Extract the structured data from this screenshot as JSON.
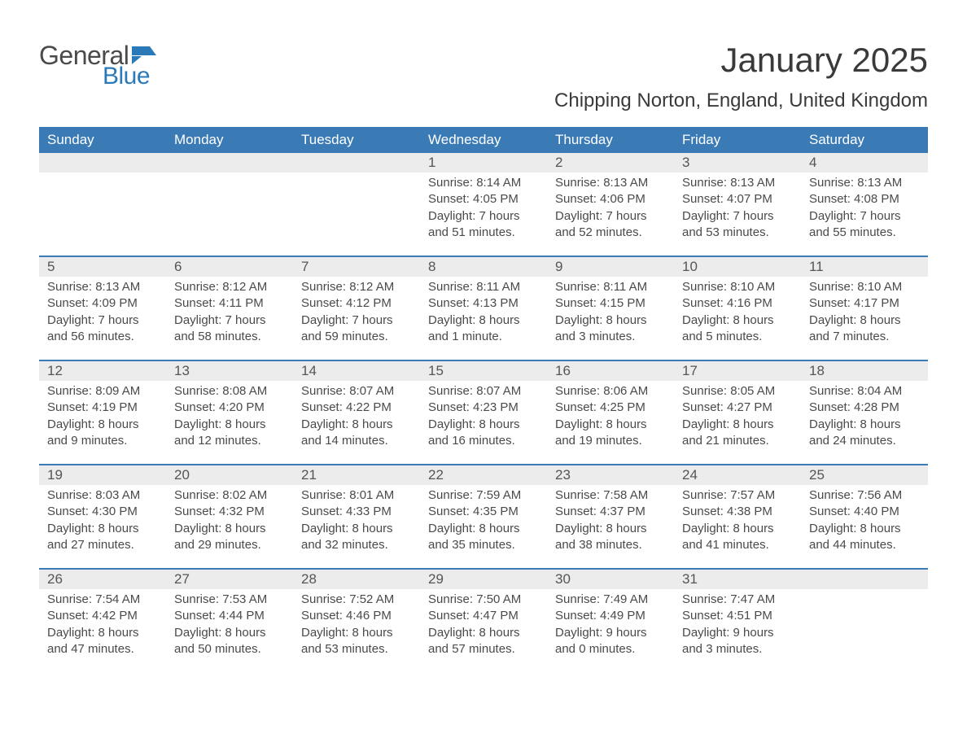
{
  "logo": {
    "text1": "General",
    "text2": "Blue",
    "flag_color": "#2a7ab9"
  },
  "title": "January 2025",
  "location": "Chipping Norton, England, United Kingdom",
  "colors": {
    "header_bg": "#3a7ab5",
    "header_text": "#ffffff",
    "daynum_bg": "#ececec",
    "week_border": "#3a7ab5",
    "body_text": "#4a4a4a",
    "title_text": "#3a3a3a",
    "logo_blue": "#2a7ab9"
  },
  "weekdays": [
    "Sunday",
    "Monday",
    "Tuesday",
    "Wednesday",
    "Thursday",
    "Friday",
    "Saturday"
  ],
  "weeks": [
    [
      null,
      null,
      null,
      {
        "n": "1",
        "sunrise": "Sunrise: 8:14 AM",
        "sunset": "Sunset: 4:05 PM",
        "daylight": "Daylight: 7 hours and 51 minutes."
      },
      {
        "n": "2",
        "sunrise": "Sunrise: 8:13 AM",
        "sunset": "Sunset: 4:06 PM",
        "daylight": "Daylight: 7 hours and 52 minutes."
      },
      {
        "n": "3",
        "sunrise": "Sunrise: 8:13 AM",
        "sunset": "Sunset: 4:07 PM",
        "daylight": "Daylight: 7 hours and 53 minutes."
      },
      {
        "n": "4",
        "sunrise": "Sunrise: 8:13 AM",
        "sunset": "Sunset: 4:08 PM",
        "daylight": "Daylight: 7 hours and 55 minutes."
      }
    ],
    [
      {
        "n": "5",
        "sunrise": "Sunrise: 8:13 AM",
        "sunset": "Sunset: 4:09 PM",
        "daylight": "Daylight: 7 hours and 56 minutes."
      },
      {
        "n": "6",
        "sunrise": "Sunrise: 8:12 AM",
        "sunset": "Sunset: 4:11 PM",
        "daylight": "Daylight: 7 hours and 58 minutes."
      },
      {
        "n": "7",
        "sunrise": "Sunrise: 8:12 AM",
        "sunset": "Sunset: 4:12 PM",
        "daylight": "Daylight: 7 hours and 59 minutes."
      },
      {
        "n": "8",
        "sunrise": "Sunrise: 8:11 AM",
        "sunset": "Sunset: 4:13 PM",
        "daylight": "Daylight: 8 hours and 1 minute."
      },
      {
        "n": "9",
        "sunrise": "Sunrise: 8:11 AM",
        "sunset": "Sunset: 4:15 PM",
        "daylight": "Daylight: 8 hours and 3 minutes."
      },
      {
        "n": "10",
        "sunrise": "Sunrise: 8:10 AM",
        "sunset": "Sunset: 4:16 PM",
        "daylight": "Daylight: 8 hours and 5 minutes."
      },
      {
        "n": "11",
        "sunrise": "Sunrise: 8:10 AM",
        "sunset": "Sunset: 4:17 PM",
        "daylight": "Daylight: 8 hours and 7 minutes."
      }
    ],
    [
      {
        "n": "12",
        "sunrise": "Sunrise: 8:09 AM",
        "sunset": "Sunset: 4:19 PM",
        "daylight": "Daylight: 8 hours and 9 minutes."
      },
      {
        "n": "13",
        "sunrise": "Sunrise: 8:08 AM",
        "sunset": "Sunset: 4:20 PM",
        "daylight": "Daylight: 8 hours and 12 minutes."
      },
      {
        "n": "14",
        "sunrise": "Sunrise: 8:07 AM",
        "sunset": "Sunset: 4:22 PM",
        "daylight": "Daylight: 8 hours and 14 minutes."
      },
      {
        "n": "15",
        "sunrise": "Sunrise: 8:07 AM",
        "sunset": "Sunset: 4:23 PM",
        "daylight": "Daylight: 8 hours and 16 minutes."
      },
      {
        "n": "16",
        "sunrise": "Sunrise: 8:06 AM",
        "sunset": "Sunset: 4:25 PM",
        "daylight": "Daylight: 8 hours and 19 minutes."
      },
      {
        "n": "17",
        "sunrise": "Sunrise: 8:05 AM",
        "sunset": "Sunset: 4:27 PM",
        "daylight": "Daylight: 8 hours and 21 minutes."
      },
      {
        "n": "18",
        "sunrise": "Sunrise: 8:04 AM",
        "sunset": "Sunset: 4:28 PM",
        "daylight": "Daylight: 8 hours and 24 minutes."
      }
    ],
    [
      {
        "n": "19",
        "sunrise": "Sunrise: 8:03 AM",
        "sunset": "Sunset: 4:30 PM",
        "daylight": "Daylight: 8 hours and 27 minutes."
      },
      {
        "n": "20",
        "sunrise": "Sunrise: 8:02 AM",
        "sunset": "Sunset: 4:32 PM",
        "daylight": "Daylight: 8 hours and 29 minutes."
      },
      {
        "n": "21",
        "sunrise": "Sunrise: 8:01 AM",
        "sunset": "Sunset: 4:33 PM",
        "daylight": "Daylight: 8 hours and 32 minutes."
      },
      {
        "n": "22",
        "sunrise": "Sunrise: 7:59 AM",
        "sunset": "Sunset: 4:35 PM",
        "daylight": "Daylight: 8 hours and 35 minutes."
      },
      {
        "n": "23",
        "sunrise": "Sunrise: 7:58 AM",
        "sunset": "Sunset: 4:37 PM",
        "daylight": "Daylight: 8 hours and 38 minutes."
      },
      {
        "n": "24",
        "sunrise": "Sunrise: 7:57 AM",
        "sunset": "Sunset: 4:38 PM",
        "daylight": "Daylight: 8 hours and 41 minutes."
      },
      {
        "n": "25",
        "sunrise": "Sunrise: 7:56 AM",
        "sunset": "Sunset: 4:40 PM",
        "daylight": "Daylight: 8 hours and 44 minutes."
      }
    ],
    [
      {
        "n": "26",
        "sunrise": "Sunrise: 7:54 AM",
        "sunset": "Sunset: 4:42 PM",
        "daylight": "Daylight: 8 hours and 47 minutes."
      },
      {
        "n": "27",
        "sunrise": "Sunrise: 7:53 AM",
        "sunset": "Sunset: 4:44 PM",
        "daylight": "Daylight: 8 hours and 50 minutes."
      },
      {
        "n": "28",
        "sunrise": "Sunrise: 7:52 AM",
        "sunset": "Sunset: 4:46 PM",
        "daylight": "Daylight: 8 hours and 53 minutes."
      },
      {
        "n": "29",
        "sunrise": "Sunrise: 7:50 AM",
        "sunset": "Sunset: 4:47 PM",
        "daylight": "Daylight: 8 hours and 57 minutes."
      },
      {
        "n": "30",
        "sunrise": "Sunrise: 7:49 AM",
        "sunset": "Sunset: 4:49 PM",
        "daylight": "Daylight: 9 hours and 0 minutes."
      },
      {
        "n": "31",
        "sunrise": "Sunrise: 7:47 AM",
        "sunset": "Sunset: 4:51 PM",
        "daylight": "Daylight: 9 hours and 3 minutes."
      },
      null
    ]
  ]
}
